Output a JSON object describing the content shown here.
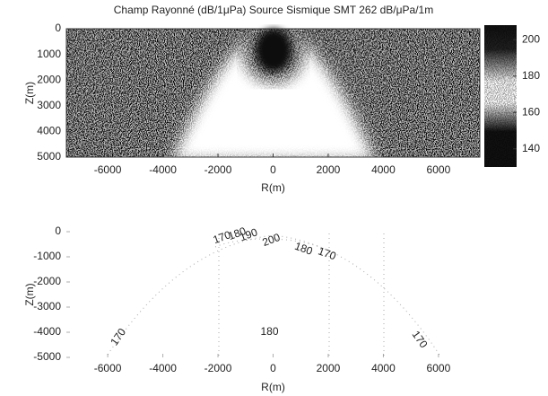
{
  "chart_data": [
    {
      "type": "heatmap",
      "title": "Champ Rayonné (dB/1μPa) Source Sismique SMT 262 dB/μPa/1m",
      "x_label": "R(m)",
      "y_label": "Z(m)",
      "xlim": [
        -7500,
        7500
      ],
      "xticks": [
        -6000,
        -4000,
        -2000,
        0,
        2000,
        4000,
        6000
      ],
      "ylim": [
        5000,
        0
      ],
      "yticks": [
        0,
        1000,
        2000,
        3000,
        4000,
        5000
      ],
      "clim": [
        130,
        208
      ],
      "cticks": [
        140,
        160,
        180,
        200
      ]
    },
    {
      "type": "contour",
      "x_label": "R(m)",
      "y_label": "Z(m)",
      "xlim": [
        -7500,
        7500
      ],
      "xticks": [
        -6000,
        -4000,
        -2000,
        0,
        2000,
        4000,
        6000
      ],
      "ylim": [
        -5000,
        0
      ],
      "yticks": [
        0,
        -1000,
        -2000,
        -3000,
        -4000,
        -5000
      ],
      "contour_labels": [
        {
          "value": 170,
          "x": -1850,
          "y": -250
        },
        {
          "value": 180,
          "x": -1300,
          "y": -100
        },
        {
          "value": 190,
          "x": -880,
          "y": -150
        },
        {
          "value": 200,
          "x": -60,
          "y": -350
        },
        {
          "value": 180,
          "x": 1100,
          "y": -700
        },
        {
          "value": 170,
          "x": 1950,
          "y": -900
        },
        {
          "value": 170,
          "x": -5600,
          "y": -4200
        },
        {
          "value": 180,
          "x": -130,
          "y": -4000
        },
        {
          "value": 170,
          "x": 5300,
          "y": -4300
        }
      ]
    }
  ]
}
